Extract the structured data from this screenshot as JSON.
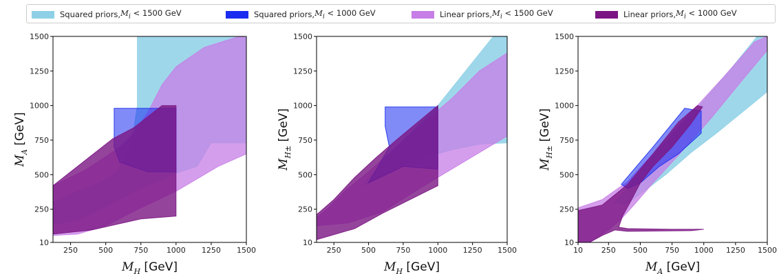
{
  "legend": {
    "entries": [
      {
        "label": "Squared priors, ",
        "math": "M",
        "sub": "i",
        "suffix": " < 1500 GeV",
        "color": "#8ed0e6"
      },
      {
        "label": "Squared priors, ",
        "math": "M",
        "sub": "i",
        "suffix": " < 1000 GeV",
        "color": "#1a2cf0"
      },
      {
        "label": "Linear priors, ",
        "math": "M",
        "sub": "i",
        "suffix": " < 1500 GeV",
        "color": "#c77ee6"
      },
      {
        "label": "Linear priors, ",
        "math": "M",
        "sub": "i",
        "suffix": " < 1000 GeV",
        "color": "#7a1583"
      }
    ]
  },
  "chart_data": [
    {
      "type": "area",
      "xlabel": {
        "symbol": "M",
        "sub": "H",
        "unit": " [GeV]"
      },
      "ylabel": {
        "symbol": "M",
        "sub": "A",
        "unit": " [GeV]"
      },
      "xlim": [
        125,
        1500
      ],
      "ylim": [
        10,
        1500
      ],
      "xticks": [
        250,
        500,
        750,
        1000,
        1250,
        1500
      ],
      "yticks": [
        10,
        250,
        500,
        750,
        1000,
        1250,
        1500
      ],
      "series": [
        {
          "name": "Squared priors, Mi < 1500 GeV",
          "color": "#8ed0e6",
          "opacity": 0.85,
          "points": [
            [
              725,
              1500
            ],
            [
              1500,
              1500
            ],
            [
              1500,
              730
            ],
            [
              1250,
              730
            ],
            [
              1150,
              560
            ],
            [
              1000,
              510
            ],
            [
              900,
              460
            ],
            [
              750,
              400
            ],
            [
              600,
              320
            ],
            [
              450,
              240
            ],
            [
              300,
              170
            ],
            [
              125,
              140
            ],
            [
              125,
              300
            ],
            [
              300,
              380
            ],
            [
              450,
              440
            ],
            [
              580,
              520
            ],
            [
              680,
              700
            ],
            [
              725,
              1000
            ]
          ]
        },
        {
          "name": "Linear priors, Mi < 1500 GeV",
          "color": "#c77ee6",
          "opacity": 0.75,
          "points": [
            [
              125,
              60
            ],
            [
              300,
              70
            ],
            [
              500,
              130
            ],
            [
              750,
              260
            ],
            [
              1000,
              380
            ],
            [
              1150,
              470
            ],
            [
              1300,
              560
            ],
            [
              1500,
              650
            ],
            [
              1500,
              1490
            ],
            [
              1450,
              1500
            ],
            [
              1200,
              1420
            ],
            [
              1000,
              1280
            ],
            [
              900,
              1150
            ],
            [
              800,
              950
            ],
            [
              700,
              800
            ],
            [
              600,
              700
            ],
            [
              500,
              630
            ],
            [
              350,
              530
            ],
            [
              125,
              420
            ]
          ]
        },
        {
          "name": "Squared priors, Mi < 1000 GeV",
          "color": "#1a2cf0",
          "opacity": 0.55,
          "points": [
            [
              560,
              980
            ],
            [
              1000,
              980
            ],
            [
              1000,
              520
            ],
            [
              800,
              520
            ],
            [
              600,
              590
            ],
            [
              560,
              700
            ]
          ]
        },
        {
          "name": "Linear priors, Mi < 1000 GeV",
          "color": "#7a1583",
          "opacity": 0.8,
          "points": [
            [
              125,
              70
            ],
            [
              400,
              100
            ],
            [
              750,
              180
            ],
            [
              1000,
              200
            ],
            [
              1000,
              1000
            ],
            [
              900,
              1000
            ],
            [
              700,
              840
            ],
            [
              550,
              760
            ],
            [
              400,
              640
            ],
            [
              250,
              520
            ],
            [
              125,
              420
            ]
          ]
        }
      ]
    },
    {
      "type": "area",
      "xlabel": {
        "symbol": "M",
        "sub": "H",
        "unit": " [GeV]"
      },
      "ylabel": {
        "symbol": "M",
        "sub": "H±",
        "unit": " [GeV]"
      },
      "xlim": [
        125,
        1500
      ],
      "ylim": [
        10,
        1500
      ],
      "xticks": [
        250,
        500,
        750,
        1000,
        1250,
        1500
      ],
      "yticks": [
        10,
        250,
        500,
        750,
        1000,
        1250,
        1500
      ],
      "series": [
        {
          "name": "Squared priors, Mi < 1500 GeV",
          "color": "#8ed0e6",
          "opacity": 0.85,
          "points": [
            [
              450,
              420
            ],
            [
              700,
              700
            ],
            [
              1000,
              1000
            ],
            [
              1200,
              1250
            ],
            [
              1400,
              1500
            ],
            [
              1500,
              1500
            ],
            [
              1500,
              730
            ],
            [
              1300,
              720
            ],
            [
              1100,
              680
            ],
            [
              900,
              620
            ],
            [
              700,
              540
            ],
            [
              550,
              460
            ]
          ]
        },
        {
          "name": "Linear priors, Mi < 1500 GeV",
          "color": "#c77ee6",
          "opacity": 0.75,
          "points": [
            [
              125,
              130
            ],
            [
              350,
              150
            ],
            [
              600,
              230
            ],
            [
              900,
              420
            ],
            [
              1200,
              600
            ],
            [
              1500,
              780
            ],
            [
              1500,
              1380
            ],
            [
              1300,
              1250
            ],
            [
              1100,
              1050
            ],
            [
              900,
              880
            ],
            [
              700,
              700
            ],
            [
              500,
              520
            ],
            [
              350,
              400
            ],
            [
              200,
              250
            ],
            [
              125,
              190
            ]
          ]
        },
        {
          "name": "Squared priors, Mi < 1000 GeV",
          "color": "#1a2cf0",
          "opacity": 0.55,
          "points": [
            [
              620,
              990
            ],
            [
              1000,
              990
            ],
            [
              1000,
              540
            ],
            [
              750,
              560
            ],
            [
              500,
              440
            ],
            [
              650,
              700
            ],
            [
              620,
              850
            ]
          ]
        },
        {
          "name": "Linear priors, Mi < 1000 GeV",
          "color": "#7a1583",
          "opacity": 0.8,
          "points": [
            [
              125,
              30
            ],
            [
              400,
              110
            ],
            [
              600,
              220
            ],
            [
              800,
              320
            ],
            [
              1000,
              420
            ],
            [
              1000,
              1000
            ],
            [
              880,
              900
            ],
            [
              700,
              750
            ],
            [
              550,
              620
            ],
            [
              400,
              480
            ],
            [
              250,
              320
            ],
            [
              125,
              210
            ]
          ]
        }
      ]
    },
    {
      "type": "area",
      "xlabel": {
        "symbol": "M",
        "sub": "A",
        "unit": " [GeV]"
      },
      "ylabel": {
        "symbol": "M",
        "sub": "H±",
        "unit": " [GeV]"
      },
      "xlim": [
        10,
        1500
      ],
      "ylim": [
        10,
        1500
      ],
      "xticks": [
        10,
        250,
        500,
        750,
        1000,
        1250,
        1500
      ],
      "yticks": [
        10,
        250,
        500,
        750,
        1000,
        1250,
        1500
      ],
      "series": [
        {
          "name": "Squared priors, Mi < 1500 GeV",
          "color": "#8ed0e6",
          "opacity": 0.85,
          "points": [
            [
              300,
              300
            ],
            [
              600,
              620
            ],
            [
              900,
              930
            ],
            [
              1200,
              1250
            ],
            [
              1420,
              1500
            ],
            [
              1500,
              1500
            ],
            [
              1500,
              1100
            ],
            [
              1300,
              950
            ],
            [
              1100,
              800
            ],
            [
              900,
              660
            ],
            [
              700,
              500
            ],
            [
              500,
              360
            ],
            [
              380,
              280
            ]
          ]
        },
        {
          "name": "Linear priors, Mi < 1500 GeV",
          "color": "#c77ee6",
          "opacity": 0.75,
          "points": [
            [
              10,
              260
            ],
            [
              200,
              320
            ],
            [
              400,
              450
            ],
            [
              650,
              700
            ],
            [
              900,
              950
            ],
            [
              1150,
              1200
            ],
            [
              1400,
              1460
            ],
            [
              1500,
              1500
            ],
            [
              1500,
              1400
            ],
            [
              1300,
              1180
            ],
            [
              1050,
              900
            ],
            [
              800,
              640
            ],
            [
              600,
              440
            ],
            [
              450,
              280
            ],
            [
              350,
              180
            ],
            [
              250,
              100
            ],
            [
              120,
              20
            ],
            [
              10,
              10
            ]
          ]
        },
        {
          "name": "Squared priors, Mi < 1000 GeV",
          "color": "#1a2cf0",
          "opacity": 0.55,
          "points": [
            [
              350,
              430
            ],
            [
              600,
              700
            ],
            [
              850,
              980
            ],
            [
              980,
              960
            ],
            [
              980,
              800
            ],
            [
              800,
              650
            ],
            [
              650,
              560
            ],
            [
              500,
              440
            ],
            [
              400,
              400
            ]
          ]
        },
        {
          "name": "Linear priors, Mi < 1000 GeV",
          "color": "#7a1583",
          "opacity": 0.8,
          "points": [
            [
              10,
              240
            ],
            [
              200,
              280
            ],
            [
              400,
              430
            ],
            [
              600,
              650
            ],
            [
              800,
              880
            ],
            [
              950,
              1000
            ],
            [
              990,
              990
            ],
            [
              900,
              870
            ],
            [
              750,
              700
            ],
            [
              600,
              560
            ],
            [
              500,
              440
            ],
            [
              420,
              300
            ],
            [
              360,
              200
            ],
            [
              330,
              120
            ],
            [
              400,
              110
            ],
            [
              750,
              105
            ],
            [
              1000,
              105
            ],
            [
              900,
              95
            ],
            [
              400,
              90
            ],
            [
              300,
              100
            ],
            [
              200,
              60
            ],
            [
              100,
              10
            ],
            [
              10,
              10
            ]
          ]
        }
      ]
    }
  ]
}
